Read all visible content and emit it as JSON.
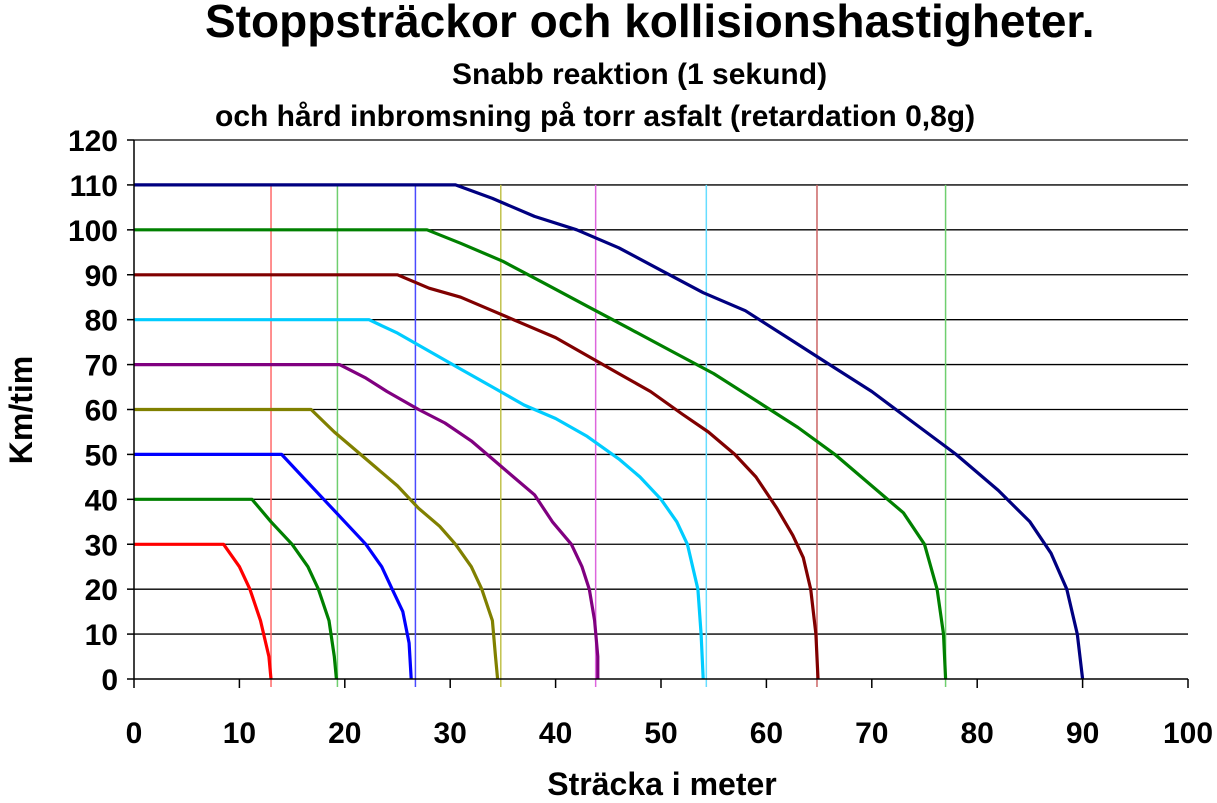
{
  "chart_data": {
    "type": "line",
    "title": "Stoppsträckor och kollisionshastigheter.",
    "subtitle_lines": [
      "Snabb reaktion (1 sekund)",
      "och hård inbromsning på torr asfalt (retardation 0,8g)"
    ],
    "xlabel": "Sträcka i meter",
    "ylabel": "Km/tim",
    "xlim": [
      0,
      100
    ],
    "ylim": [
      0,
      120
    ],
    "xticks": [
      0,
      10,
      20,
      30,
      40,
      50,
      60,
      70,
      80,
      90,
      100
    ],
    "yticks": [
      0,
      10,
      20,
      30,
      40,
      50,
      60,
      70,
      80,
      90,
      100,
      110,
      120
    ],
    "grid": "horizontal",
    "series": [
      {
        "color": "#ff0000",
        "points": [
          [
            0,
            30
          ],
          [
            8.5,
            30
          ],
          [
            10,
            25
          ],
          [
            11,
            20
          ],
          [
            12,
            13
          ],
          [
            12.8,
            5
          ],
          [
            13,
            0
          ]
        ]
      },
      {
        "color": "#008000",
        "points": [
          [
            0,
            40
          ],
          [
            11.2,
            40
          ],
          [
            13,
            35
          ],
          [
            15,
            30
          ],
          [
            16.5,
            25
          ],
          [
            17.5,
            20
          ],
          [
            18.5,
            13
          ],
          [
            19,
            5
          ],
          [
            19.2,
            0
          ]
        ]
      },
      {
        "color": "#0000ff",
        "points": [
          [
            0,
            50
          ],
          [
            14,
            50
          ],
          [
            16,
            45
          ],
          [
            18,
            40
          ],
          [
            20,
            35
          ],
          [
            22,
            30
          ],
          [
            23.5,
            25
          ],
          [
            24.5,
            20
          ],
          [
            25.5,
            15
          ],
          [
            26.1,
            8
          ],
          [
            26.3,
            0
          ]
        ]
      },
      {
        "color": "#808000",
        "points": [
          [
            0,
            60
          ],
          [
            16.8,
            60
          ],
          [
            19,
            55
          ],
          [
            21,
            51
          ],
          [
            23,
            47
          ],
          [
            25,
            43
          ],
          [
            27,
            38
          ],
          [
            29,
            34
          ],
          [
            30.5,
            30
          ],
          [
            32,
            25
          ],
          [
            33,
            20
          ],
          [
            34,
            13
          ],
          [
            34.3,
            5
          ],
          [
            34.5,
            0
          ]
        ]
      },
      {
        "color": "#800080",
        "points": [
          [
            0,
            70
          ],
          [
            19.5,
            70
          ],
          [
            22,
            67
          ],
          [
            24,
            64
          ],
          [
            27,
            60
          ],
          [
            29.5,
            57
          ],
          [
            32,
            53
          ],
          [
            34,
            49
          ],
          [
            36,
            45
          ],
          [
            38,
            41
          ],
          [
            39.7,
            35
          ],
          [
            41.5,
            30
          ],
          [
            42.5,
            25
          ],
          [
            43.2,
            20
          ],
          [
            43.7,
            13
          ],
          [
            44,
            5
          ],
          [
            44,
            0
          ]
        ]
      },
      {
        "color": "#00ccff",
        "points": [
          [
            0,
            80
          ],
          [
            22.3,
            80
          ],
          [
            25,
            77
          ],
          [
            28,
            73
          ],
          [
            31,
            69
          ],
          [
            34,
            65
          ],
          [
            37,
            61
          ],
          [
            40,
            58
          ],
          [
            43,
            54
          ],
          [
            46,
            49
          ],
          [
            48,
            45
          ],
          [
            50,
            40
          ],
          [
            51.5,
            35
          ],
          [
            52.5,
            30
          ],
          [
            53.5,
            20
          ],
          [
            53.8,
            10
          ],
          [
            54,
            0
          ]
        ]
      },
      {
        "color": "#800000",
        "points": [
          [
            0,
            90
          ],
          [
            25,
            90
          ],
          [
            28,
            87
          ],
          [
            31,
            85
          ],
          [
            34,
            82
          ],
          [
            37,
            79
          ],
          [
            40,
            76
          ],
          [
            43,
            72
          ],
          [
            46,
            68
          ],
          [
            49,
            64
          ],
          [
            52,
            59
          ],
          [
            54.5,
            55
          ],
          [
            57,
            50
          ],
          [
            59,
            45
          ],
          [
            61,
            38
          ],
          [
            62.5,
            32
          ],
          [
            63.5,
            27
          ],
          [
            64.2,
            20
          ],
          [
            64.7,
            10
          ],
          [
            64.9,
            0
          ]
        ]
      },
      {
        "color": "#008000",
        "points": [
          [
            0,
            100
          ],
          [
            27.8,
            100
          ],
          [
            31,
            97
          ],
          [
            35,
            93
          ],
          [
            39,
            88
          ],
          [
            43,
            83
          ],
          [
            47,
            78
          ],
          [
            51,
            73
          ],
          [
            55,
            68
          ],
          [
            59,
            62
          ],
          [
            63,
            56
          ],
          [
            66.5,
            50
          ],
          [
            70,
            43
          ],
          [
            73,
            37
          ],
          [
            75,
            30
          ],
          [
            76.2,
            20
          ],
          [
            76.8,
            10
          ],
          [
            77,
            0
          ]
        ]
      },
      {
        "color": "#000080",
        "points": [
          [
            0,
            110
          ],
          [
            30.5,
            110
          ],
          [
            34,
            107
          ],
          [
            38,
            103
          ],
          [
            42,
            100
          ],
          [
            46,
            96
          ],
          [
            50,
            91
          ],
          [
            54,
            86
          ],
          [
            58,
            82
          ],
          [
            62,
            76
          ],
          [
            66,
            70
          ],
          [
            70,
            64
          ],
          [
            74,
            57
          ],
          [
            78,
            50
          ],
          [
            82,
            42
          ],
          [
            85,
            35
          ],
          [
            87,
            28
          ],
          [
            88.5,
            20
          ],
          [
            89.5,
            10
          ],
          [
            90,
            0
          ]
        ]
      }
    ],
    "markers": [
      {
        "x": 13.0,
        "color": "#ff6a6a"
      },
      {
        "x": 19.3,
        "color": "#6fcf6f"
      },
      {
        "x": 26.7,
        "color": "#4a4aff"
      },
      {
        "x": 34.8,
        "color": "#c2c24c"
      },
      {
        "x": 43.8,
        "color": "#dd66dd"
      },
      {
        "x": 54.3,
        "color": "#66ddff"
      },
      {
        "x": 64.8,
        "color": "#cc6666"
      },
      {
        "x": 77.0,
        "color": "#6fcf6f"
      }
    ]
  }
}
